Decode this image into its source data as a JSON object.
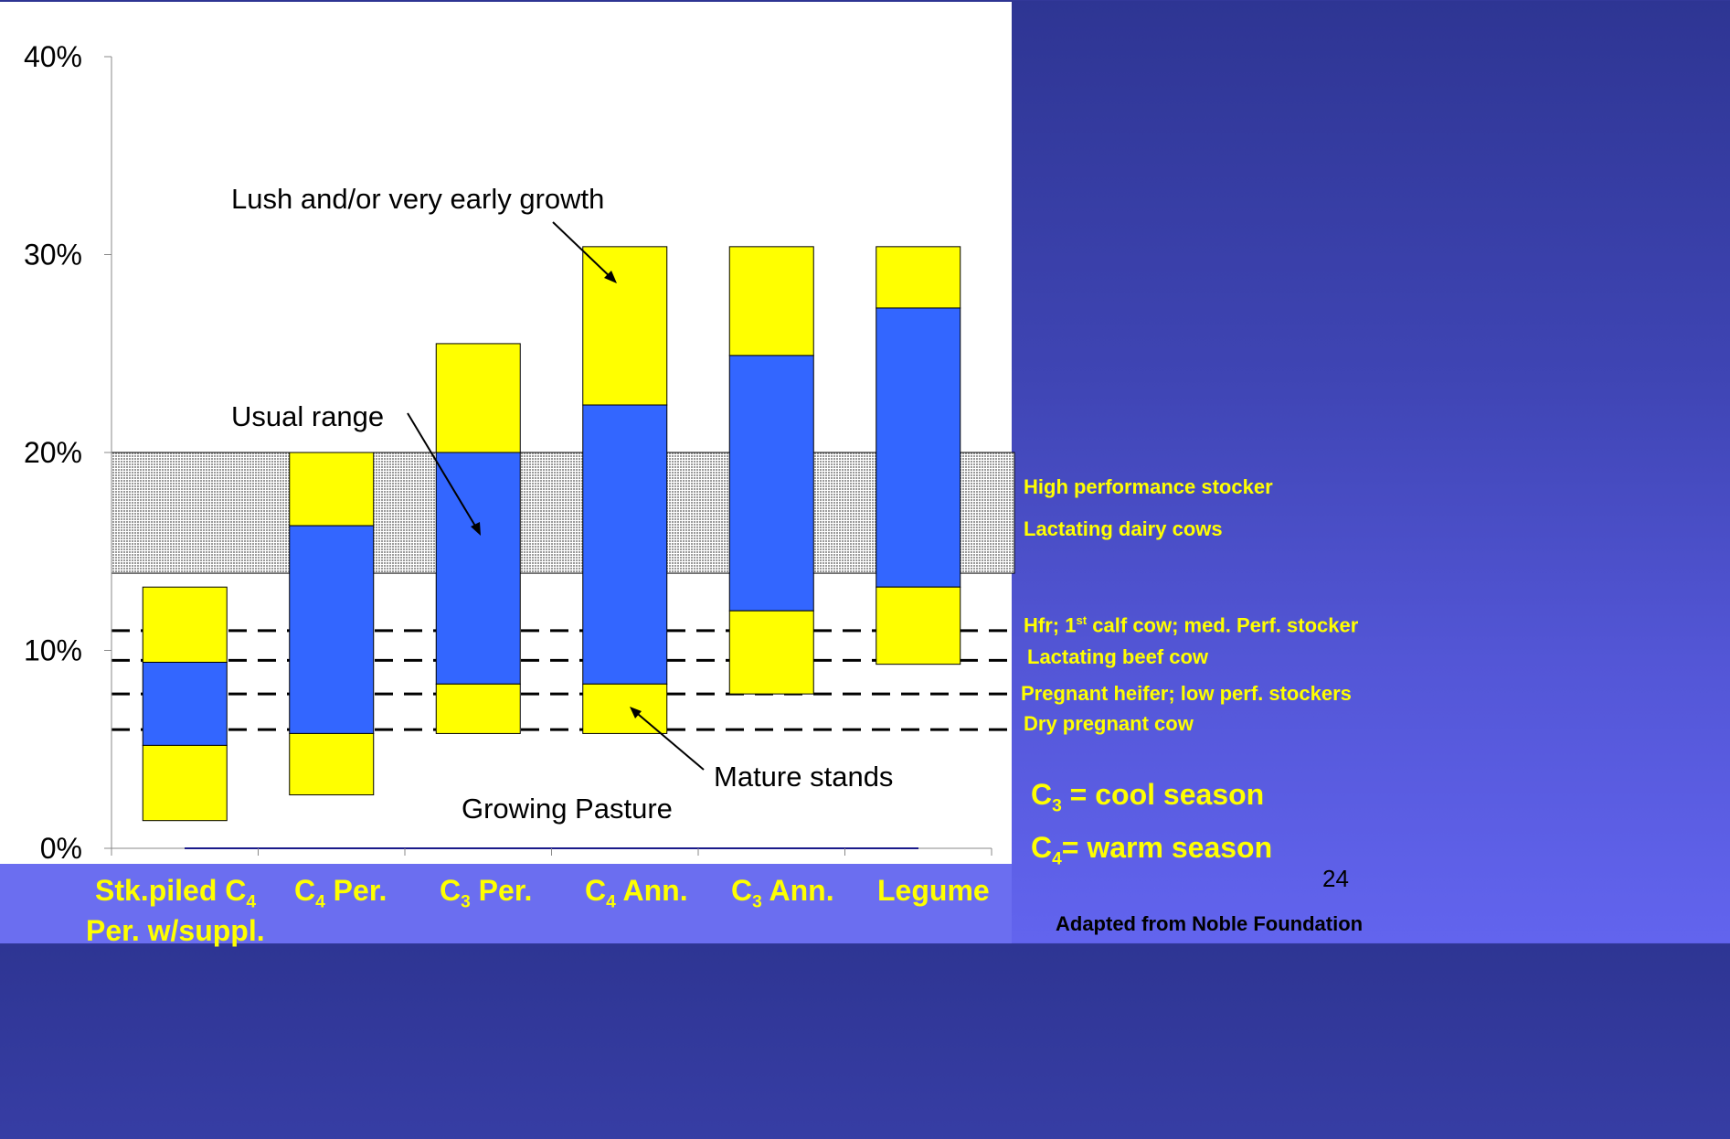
{
  "chart_data": {
    "type": "bar",
    "categories": [
      "Stk.piled C4 Per. w/suppl.",
      "C4 Per.",
      "C3 Per.",
      "C4 Ann.",
      "C3 Ann.",
      "Legume"
    ],
    "ylim": [
      0,
      40
    ],
    "yticks": [
      "0%",
      "10%",
      "20%",
      "30%",
      "40%"
    ],
    "series": [
      {
        "name": "Lush and/or very early growth",
        "low": [
          9.4,
          16.3,
          20.0,
          22.4,
          24.9,
          27.3
        ],
        "high": [
          13.2,
          20.0,
          25.5,
          30.4,
          30.4,
          30.4
        ]
      },
      {
        "name": "Usual range",
        "low": [
          5.2,
          5.8,
          8.3,
          8.3,
          12.0,
          13.2
        ],
        "high": [
          9.4,
          16.3,
          20.0,
          22.4,
          24.9,
          27.3
        ]
      },
      {
        "name": "Mature stands",
        "low": [
          1.4,
          2.7,
          5.8,
          5.8,
          7.8,
          9.3
        ],
        "high": [
          5.2,
          5.8,
          8.3,
          8.3,
          12.0,
          13.2
        ]
      }
    ],
    "colors": {
      "yellow": "#ffff00",
      "blue": "#3366ff",
      "band": "#c8c8c8",
      "bandOutline": "#000000"
    },
    "shaded_band": {
      "low": 13.9,
      "high": 20.0
    },
    "requirement_lines": [
      11.0,
      9.5,
      7.8,
      6.0
    ],
    "annotations": {
      "lush": "Lush and/or very early growth",
      "usual": "Usual range",
      "mature": "Mature stands",
      "growing": "Growing Pasture"
    }
  },
  "categories_display": {
    "c1_pre": "Stk.piled C",
    "c1_sub": "4",
    "c1_line2": "Per. w/suppl.",
    "c2_pre": "C",
    "c2_sub": "4",
    "c2_post": " Per.",
    "c3_pre": "C",
    "c3_sub": "3",
    "c3_post": " Per.",
    "c4_pre": "C",
    "c4_sub": "4",
    "c4_post": " Ann.",
    "c5_pre": "C",
    "c5_sub": "3",
    "c5_post": " Ann.",
    "c6": "Legume"
  },
  "requirements": {
    "high_perf": "High performance stocker",
    "lact_dairy": "Lactating dairy cows",
    "hfr_pre": "Hfr; 1",
    "hfr_sup": "st",
    "hfr_post": " calf cow; med. Perf. stocker",
    "lact_beef": "Lactating beef cow",
    "preg_heifer": "Pregnant heifer; low perf. stockers",
    "dry_preg": "Dry pregnant cow"
  },
  "legend": {
    "c3_pre": "C",
    "c3_sub": "3",
    "c3_post": " = cool season",
    "c4_pre": "C",
    "c4_sub": "4",
    "c4_post": "= warm season"
  },
  "page_number": "24",
  "source": "Adapted from Noble Foundation"
}
